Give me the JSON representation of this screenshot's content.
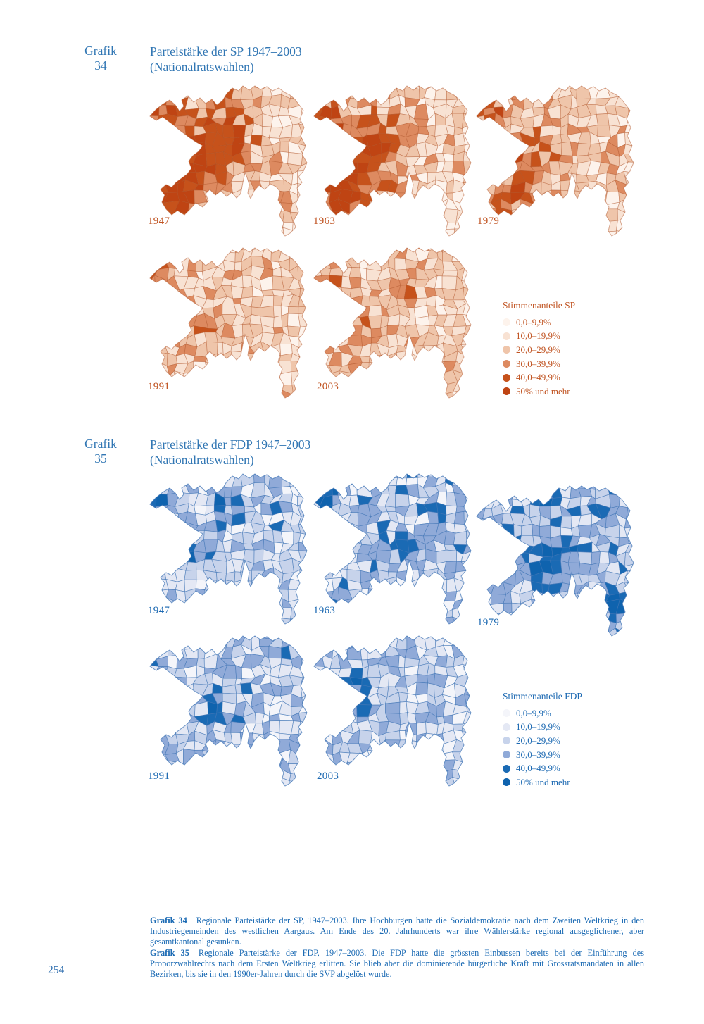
{
  "page": {
    "number": "254"
  },
  "figures": [
    {
      "id": "grafik-34",
      "label_word": "Grafik",
      "label_number": "34",
      "title_line1": "Parteistärke der SP 1947–2003",
      "title_line2": "(Nationalratswahlen)",
      "party": "SP",
      "accent_color": "#c05321",
      "map_border_color": "rgba(176,82,38,0.5)",
      "years": [
        "1947",
        "1963",
        "1979",
        "1991",
        "2003"
      ],
      "legend": {
        "title": "Stimmenanteile SP",
        "bins": [
          {
            "label": "0,0–9,9%",
            "color": "#fdf3ec"
          },
          {
            "label": "10,0–19,9%",
            "color": "#f8e2d3"
          },
          {
            "label": "20,0–29,9%",
            "color": "#efc5aa"
          },
          {
            "label": "30,0–39,9%",
            "color": "#dd8a60"
          },
          {
            "label": "40,0–49,9%",
            "color": "#c6521b"
          },
          {
            "label": "50% und mehr",
            "color": "#bf4413"
          }
        ]
      }
    },
    {
      "id": "grafik-35",
      "label_word": "Grafik",
      "label_number": "35",
      "title_line1": "Parteistärke der FDP 1947–2003",
      "title_line2": "(Nationalratswahlen)",
      "party": "FDP",
      "accent_color": "#1c69b2",
      "map_border_color": "rgba(66,118,182,0.75)",
      "years": [
        "1947",
        "1963",
        "1979",
        "1991",
        "2003"
      ],
      "legend": {
        "title": "Stimmenanteile FDP",
        "bins": [
          {
            "label": "0,0–9,9%",
            "color": "#f4f5fa"
          },
          {
            "label": "10,0–19,9%",
            "color": "#e4e8f4"
          },
          {
            "label": "20,0–29,9%",
            "color": "#c7d3eb"
          },
          {
            "label": "30,0–39,9%",
            "color": "#90aad8"
          },
          {
            "label": "40,0–49,9%",
            "color": "#1a6ab4"
          },
          {
            "label": "50% und mehr",
            "color": "#0f63ae"
          }
        ]
      }
    }
  ],
  "captions": [
    {
      "label": "Grafik 34",
      "text": "Regionale Parteistärke der SP, 1947–2003. Ihre Hochburgen hatte die Sozialdemokratie nach dem Zweiten Weltkrieg in den Industriegemeinden des westlichen Aargaus. Am Ende des 20. Jahrhunderts war ihre Wählerstärke regional ausgeglichener, aber gesamtkantonal gesunken."
    },
    {
      "label": "Grafik 35",
      "text": "Regionale Parteistärke der FDP, 1947–2003. Die FDP hatte die grössten Einbussen bereits bei der Einführung des Proporzwahlrechts nach dem Ersten Weltkrieg erlitten. Sie blieb aber die dominierende bürgerliche Kraft mit Grossratsmandaten in allen Bezirken, bis sie in den 1990er-Jahren durch die SVP abgelöst wurde."
    }
  ],
  "chart_data": [
    {
      "type": "choropleth",
      "subtype": "small-multiples",
      "title": "Parteistärke der SP 1947–2003 (Nationalratswahlen)",
      "geography": "Gemeinden des Kantons Aargau",
      "maps": [
        "1947",
        "1963",
        "1979",
        "1991",
        "2003"
      ],
      "legend_title": "Stimmenanteile SP",
      "bins": [
        "0,0–9,9%",
        "10,0–19,9%",
        "20,0–29,9%",
        "30,0–39,9%",
        "40,0–49,9%",
        "50% und mehr"
      ],
      "bin_colors": [
        "#fdf3ec",
        "#f8e2d3",
        "#efc5aa",
        "#dd8a60",
        "#c6521b",
        "#bf4413"
      ],
      "legend_position": "right of second row",
      "reading": "1947 und 1963 dunkle Hochburgen (40–50%+) in den Industriegemeinden des westlichen und zentralen Aargaus, helle Werte im Osten und Südosten; 1979, 1991 und 2003 zunehmend regional ausgeglichener und insgesamt heller (meist 10,0–29,9%)."
    },
    {
      "type": "choropleth",
      "subtype": "small-multiples",
      "title": "Parteistärke der FDP 1947–2003 (Nationalratswahlen)",
      "geography": "Gemeinden des Kantons Aargau",
      "maps": [
        "1947",
        "1963",
        "1979",
        "1991",
        "2003"
      ],
      "legend_title": "Stimmenanteile FDP",
      "bins": [
        "0,0–9,9%",
        "10,0–19,9%",
        "20,0–29,9%",
        "30,0–39,9%",
        "40,0–49,9%",
        "50% und mehr"
      ],
      "bin_colors": [
        "#f4f5fa",
        "#e4e8f4",
        "#c7d3eb",
        "#90aad8",
        "#1a6ab4",
        "#0f63ae"
      ],
      "legend_position": "right of second row",
      "reading": "Durchgehend mittlere Stimmenanteile (meist 20,0–39,9%) über den ganzen Kanton verteilt mit vereinzelten dunklen Gemeinden über 40%; 1979 Verdichtung im Zentrum, gegen 1991 und 2003 insgesamt heller."
    }
  ]
}
